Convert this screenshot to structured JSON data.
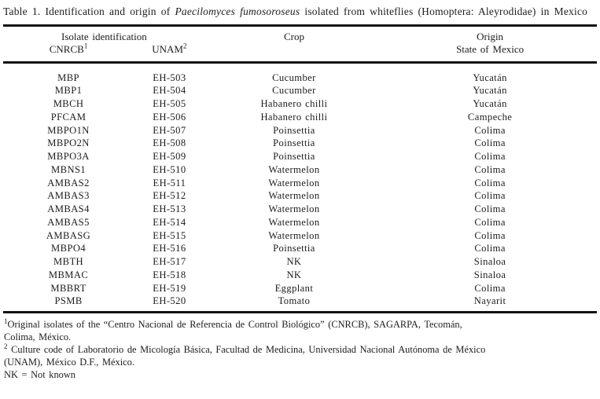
{
  "title": {
    "prefix": "Table 1. Identification and origin of ",
    "species_italic": "Paecilomyces fumosoroseus",
    "suffix": " isolated from whiteflies (Homoptera: Aleyrodidae) in Mexico"
  },
  "table": {
    "headers": {
      "isolate_identification": "Isolate identification",
      "cnrcb": "CNRCB",
      "cnrcb_sup": "1",
      "unam": "UNAM",
      "unam_sup": "2",
      "crop": "Crop",
      "origin": "Origin",
      "origin_sub": "State of Mexico"
    },
    "rows": [
      {
        "cnrcb": "MBP",
        "unam": "EH-503",
        "crop": "Cucumber",
        "origin": "Yucatán"
      },
      {
        "cnrcb": "MBP1",
        "unam": "EH-504",
        "crop": "Cucumber",
        "origin": "Yucatán"
      },
      {
        "cnrcb": "MBCH",
        "unam": "EH-505",
        "crop": "Habanero chilli",
        "origin": "Yucatán"
      },
      {
        "cnrcb": "PFCAM",
        "unam": "EH-506",
        "crop": "Habanero chilli",
        "origin": "Campeche"
      },
      {
        "cnrcb": "MBPO1N",
        "unam": "EH-507",
        "crop": "Poinsettia",
        "origin": "Colima"
      },
      {
        "cnrcb": "MBPO2N",
        "unam": "EH-508",
        "crop": "Poinsettia",
        "origin": "Colima"
      },
      {
        "cnrcb": "MBPO3A",
        "unam": "EH-509",
        "crop": "Poinsettia",
        "origin": "Colima"
      },
      {
        "cnrcb": "MBNS1",
        "unam": "EH-510",
        "crop": "Watermelon",
        "origin": "Colima"
      },
      {
        "cnrcb": "AMBAS2",
        "unam": "EH-511",
        "crop": "Watermelon",
        "origin": "Colima"
      },
      {
        "cnrcb": "AMBAS3",
        "unam": "EH-512",
        "crop": "Watermelon",
        "origin": "Colima"
      },
      {
        "cnrcb": "AMBAS4",
        "unam": "EH-513",
        "crop": "Watermelon",
        "origin": "Colima"
      },
      {
        "cnrcb": "AMBAS5",
        "unam": "EH-514",
        "crop": "Watermelon",
        "origin": "Colima"
      },
      {
        "cnrcb": "AMBASG",
        "unam": "EH-515",
        "crop": "Watermelon",
        "origin": "Colima"
      },
      {
        "cnrcb": "MBPO4",
        "unam": "EH-516",
        "crop": "Poinsettia",
        "origin": "Colima"
      },
      {
        "cnrcb": "MBTH",
        "unam": "EH-517",
        "crop": "NK",
        "origin": "Sinaloa"
      },
      {
        "cnrcb": "MBMAC",
        "unam": "EH-518",
        "crop": "NK",
        "origin": "Sinaloa"
      },
      {
        "cnrcb": "MBBRT",
        "unam": "EH-519",
        "crop": "Eggplant",
        "origin": "Colima"
      },
      {
        "cnrcb": "PSMB",
        "unam": "EH-520",
        "crop": "Tomato",
        "origin": "Nayarit"
      }
    ]
  },
  "footnotes": {
    "fn1_sup": "1",
    "fn1_text": "Original isolates of the “Centro Nacional de Referencia de Control Biológico” (CNRCB), SAGARPA, Tecomán, Colima, México.",
    "fn2_sup": "2",
    "fn2_text": " Culture code of Laboratorio de Micología Básica, Facultad de Medicina, Universidad Nacional Autónoma de México (UNAM), México D.F., México.",
    "fn3_text": "NK = Not known"
  }
}
